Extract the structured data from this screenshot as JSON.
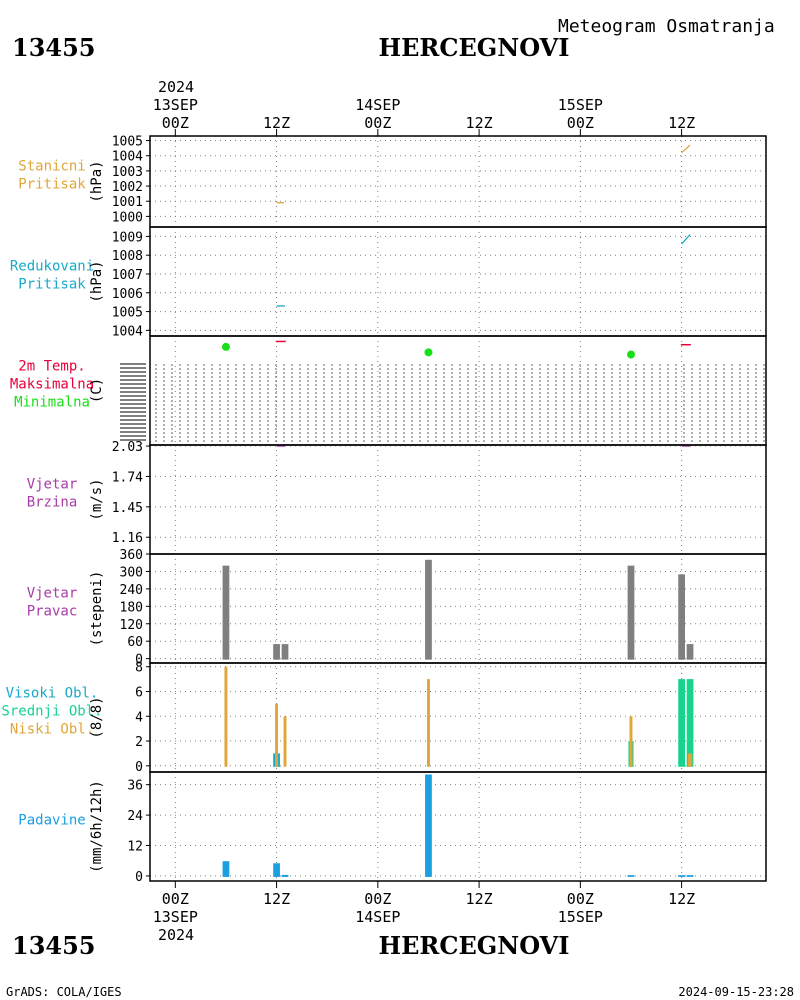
{
  "header": {
    "station_id": "13455",
    "station_name": "HERCEGNOVI",
    "product": "Meteogram Osmatranja"
  },
  "footer": {
    "credit": "GrADS: COLA/IGES",
    "timestamp": "2024-09-15-23:28"
  },
  "colors": {
    "pressure": "#e0a63a",
    "reduced": "#19a9c9",
    "tmax": "#e8003a",
    "tmin": "#18e018",
    "wind": "#a83ca8",
    "bar_gray": "#7f7f7f",
    "cloud_high": "#19a9c9",
    "cloud_mid": "#17d38e",
    "cloud_low": "#e0a63a",
    "precip": "#1a9fe0"
  },
  "chart_data": {
    "type": "meteogram",
    "time_axis": {
      "top_year": "2024",
      "bottom_year": "2024",
      "ticks": [
        {
          "t": 0,
          "hour": "00Z",
          "date": "13SEP"
        },
        {
          "t": 12,
          "hour": "12Z",
          "date": ""
        },
        {
          "t": 24,
          "hour": "00Z",
          "date": "14SEP"
        },
        {
          "t": 36,
          "hour": "12Z",
          "date": ""
        },
        {
          "t": 48,
          "hour": "00Z",
          "date": "15SEP"
        },
        {
          "t": 60,
          "hour": "12Z",
          "date": ""
        }
      ],
      "range": [
        -3,
        70
      ]
    },
    "panels": [
      {
        "key": "station_pressure",
        "labels": [
          "Stanicni",
          "Pritisak"
        ],
        "label_colors": [
          "pressure",
          "pressure"
        ],
        "unit": "(hPa)",
        "ylim": [
          999.3,
          1005.3
        ],
        "ticks": [
          1000,
          1001,
          1002,
          1003,
          1004,
          1005
        ],
        "tick_labels": [
          "1000",
          "1001",
          "1002",
          "1003",
          "1004",
          "1005"
        ],
        "type": "line",
        "series": [
          {
            "color": "pressure",
            "points": [
              [
                12,
                1000.9
              ],
              [
                12.9,
                1000.9
              ]
            ]
          },
          {
            "color": "pressure",
            "points": [
              [
                60,
                1004.2
              ],
              [
                61,
                1004.7
              ]
            ]
          }
        ]
      },
      {
        "key": "reduced_pressure",
        "labels": [
          "Redukovani",
          "Pritisak"
        ],
        "label_colors": [
          "reduced",
          "reduced"
        ],
        "unit": "(hPa)",
        "ylim": [
          1003.7,
          1009.5
        ],
        "ticks": [
          1004,
          1005,
          1006,
          1007,
          1008,
          1009
        ],
        "tick_labels": [
          "1004",
          "1005",
          "1006",
          "1007",
          "1008",
          "1009"
        ],
        "type": "line",
        "series": [
          {
            "color": "reduced",
            "points": [
              [
                12,
                1005.3
              ],
              [
                13,
                1005.3
              ]
            ]
          },
          {
            "color": "reduced",
            "points": [
              [
                60,
                1008.6
              ],
              [
                61,
                1009.1
              ]
            ]
          }
        ]
      },
      {
        "key": "temperature",
        "labels": [
          "2m Temp.",
          "Maksimalna",
          "Minimalna"
        ],
        "label_colors": [
          "tmax",
          "tmax",
          "tmin"
        ],
        "unit": "(C)",
        "type": "temperature",
        "note": "y-axis ticks illegible (overprinted)",
        "points_min": [
          [
            6,
            0.9
          ],
          [
            30,
            0.85
          ],
          [
            54,
            0.83
          ]
        ],
        "points_max": [
          [
            12.5,
            0.95
          ],
          [
            60.5,
            0.92
          ]
        ]
      },
      {
        "key": "wind_speed",
        "labels": [
          "Vjetar",
          "Brzina"
        ],
        "label_colors": [
          "wind",
          "wind"
        ],
        "unit": "(m/s)",
        "ylim": [
          1.0,
          2.04
        ],
        "ticks": [
          1.16,
          1.45,
          1.74,
          2.03
        ],
        "tick_labels": [
          "1.16",
          "1.45",
          "1.74",
          "2.03"
        ],
        "type": "line",
        "series": [
          {
            "color": "wind",
            "points": [
              [
                12,
                2.03
              ],
              [
                13,
                2.03
              ]
            ]
          },
          {
            "color": "wind",
            "points": [
              [
                60,
                2.03
              ],
              [
                61,
                2.03
              ]
            ]
          }
        ]
      },
      {
        "key": "wind_direction",
        "labels": [
          "Vjetar",
          "Pravac"
        ],
        "label_colors": [
          "wind",
          "wind"
        ],
        "unit": "(stepeni)",
        "ylim": [
          -15,
          360
        ],
        "ticks": [
          0,
          60,
          120,
          180,
          240,
          300,
          360
        ],
        "tick_labels": [
          "0",
          "60",
          "120",
          "180",
          "240",
          "300",
          "360"
        ],
        "type": "bar",
        "bars": [
          {
            "t": 6,
            "value": 320,
            "color": "bar_gray",
            "w": 0.8
          },
          {
            "t": 12,
            "value": 50,
            "color": "bar_gray",
            "w": 0.8
          },
          {
            "t": 13,
            "value": 50,
            "color": "bar_gray",
            "w": 0.8
          },
          {
            "t": 30,
            "value": 340,
            "color": "bar_gray",
            "w": 0.8
          },
          {
            "t": 54,
            "value": 320,
            "color": "bar_gray",
            "w": 0.8
          },
          {
            "t": 60,
            "value": 290,
            "color": "bar_gray",
            "w": 0.8
          },
          {
            "t": 61,
            "value": 50,
            "color": "bar_gray",
            "w": 0.8
          }
        ]
      },
      {
        "key": "clouds",
        "labels": [
          "Visoki Obl.",
          "Srednji Obl.",
          "Niski Obl."
        ],
        "label_colors": [
          "cloud_high",
          "cloud_mid",
          "cloud_low"
        ],
        "unit": "(8/8)",
        "ylim": [
          -0.5,
          8.3
        ],
        "ticks": [
          0,
          2,
          4,
          6,
          8
        ],
        "tick_labels": [
          "0",
          "2",
          "4",
          "6",
          "8"
        ],
        "type": "bar",
        "bars": [
          {
            "t": 6,
            "value": 8,
            "color": "cloud_low",
            "w": 0.35
          },
          {
            "t": 12,
            "value": 1,
            "color": "cloud_high",
            "w": 0.8
          },
          {
            "t": 12,
            "value": 5,
            "color": "cloud_low",
            "w": 0.35
          },
          {
            "t": 13,
            "value": 4,
            "color": "cloud_low",
            "w": 0.35
          },
          {
            "t": 30,
            "value": 7,
            "color": "cloud_low",
            "w": 0.35
          },
          {
            "t": 54,
            "value": 2,
            "color": "cloud_mid",
            "w": 0.6
          },
          {
            "t": 54,
            "value": 4,
            "color": "cloud_low",
            "w": 0.35
          },
          {
            "t": 60,
            "value": 7,
            "color": "cloud_mid",
            "w": 0.8
          },
          {
            "t": 61,
            "value": 7,
            "color": "cloud_mid",
            "w": 0.8
          },
          {
            "t": 61,
            "value": 1,
            "color": "cloud_low",
            "w": 0.5
          }
        ]
      },
      {
        "key": "precipitation",
        "labels": [
          "Padavine"
        ],
        "label_colors": [
          "precip"
        ],
        "unit": "(mm/6h/12h)",
        "ylim": [
          -2,
          41
        ],
        "ticks": [
          0,
          12,
          24,
          36
        ],
        "tick_labels": [
          "0",
          "12",
          "24",
          "36"
        ],
        "type": "bar",
        "bars": [
          {
            "t": 6,
            "value": 5.8,
            "color": "precip",
            "w": 0.8
          },
          {
            "t": 12,
            "value": 5,
            "color": "precip",
            "w": 0.8
          },
          {
            "t": 13,
            "value": 0.4,
            "color": "precip",
            "w": 0.8
          },
          {
            "t": 30,
            "value": 40,
            "color": "precip",
            "w": 0.8
          },
          {
            "t": 54,
            "value": 0.3,
            "color": "precip",
            "w": 0.8
          },
          {
            "t": 60,
            "value": 0.3,
            "color": "precip",
            "w": 0.8
          },
          {
            "t": 61,
            "value": 0.3,
            "color": "precip",
            "w": 0.8
          }
        ]
      }
    ]
  }
}
